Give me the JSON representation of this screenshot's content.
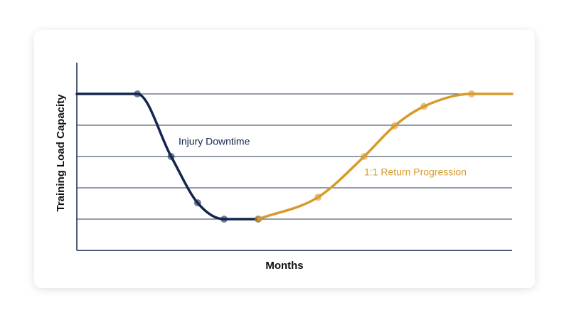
{
  "chart_data": {
    "type": "line",
    "x_label": "Months",
    "y_label": "Training Load Capacity",
    "xlim": [
      0,
      12
    ],
    "ylim": [
      0,
      6
    ],
    "yticks": [
      1,
      2,
      3,
      4,
      5
    ],
    "grid": true,
    "series": [
      {
        "name": "Injury Downtime",
        "color": "#13264f",
        "x": [
          0,
          1.67,
          2.6,
          3.33,
          4.06,
          5
        ],
        "values": [
          5,
          5,
          3,
          1.52,
          1,
          1
        ]
      },
      {
        "name": "1:1 Return Progression",
        "color": "#d79a2b",
        "x": [
          5,
          6.65,
          7.92,
          8.76,
          9.57,
          10.88,
          12
        ],
        "values": [
          1,
          1.7,
          3,
          3.98,
          4.6,
          5,
          5
        ]
      }
    ]
  }
}
